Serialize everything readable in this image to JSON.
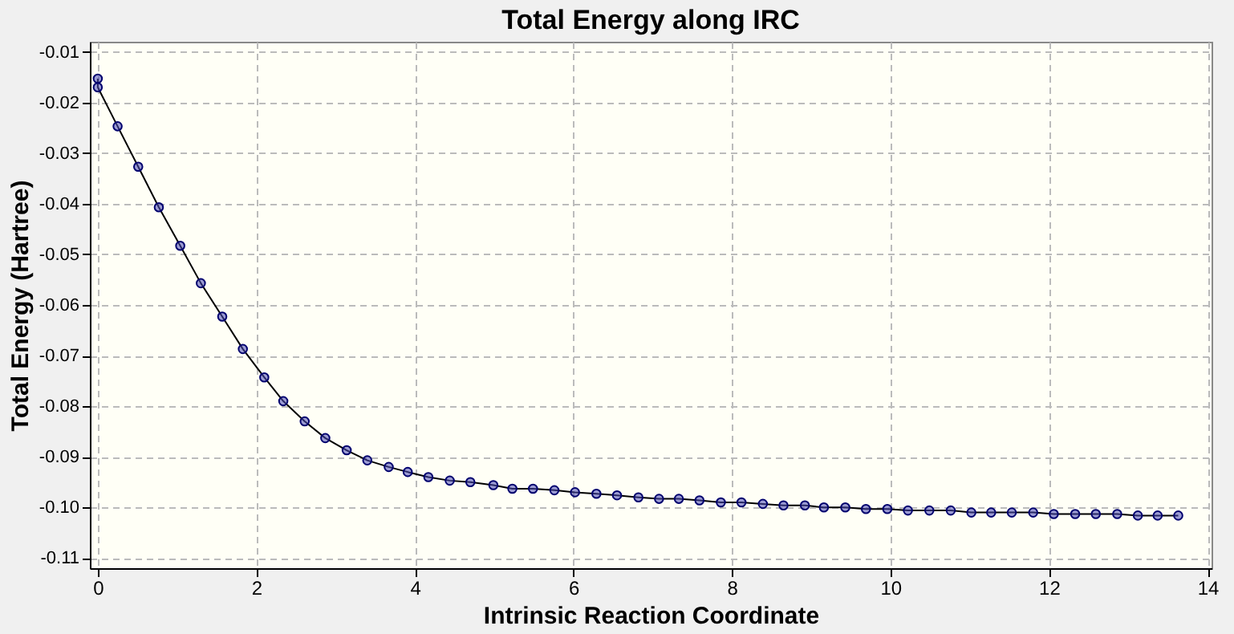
{
  "chart_data": {
    "type": "line",
    "title": "Total Energy along IRC",
    "xlabel": "Intrinsic Reaction Coordinate",
    "ylabel": "Total Energy (Hartree)",
    "xlim": [
      -0.1,
      14.05
    ],
    "ylim": [
      -0.112,
      -0.008
    ],
    "xticks": [
      0,
      2,
      4,
      6,
      8,
      10,
      12,
      14
    ],
    "yticks": [
      {
        "value": -0.01,
        "label": "-0.01"
      },
      {
        "value": -0.02,
        "label": "-0.02"
      },
      {
        "value": -0.03,
        "label": "-0.03"
      },
      {
        "value": -0.04,
        "label": "-0.04"
      },
      {
        "value": -0.05,
        "label": "-0.05"
      },
      {
        "value": -0.06,
        "label": "-0.06"
      },
      {
        "value": -0.07,
        "label": "-0.07"
      },
      {
        "value": -0.08,
        "label": "-0.08"
      },
      {
        "value": -0.09,
        "label": "-0.09"
      },
      {
        "value": -0.1,
        "label": "-0.10"
      },
      {
        "value": -0.11,
        "label": "-0.11"
      }
    ],
    "grid": true,
    "marker": "circle",
    "line_style": "solid",
    "series": [
      {
        "color": "#4a4ab8",
        "x": [
          0,
          0,
          0.25,
          0.51,
          0.77,
          1.04,
          1.3,
          1.57,
          1.83,
          2.1,
          2.34,
          2.61,
          2.87,
          3.14,
          3.4,
          3.67,
          3.91,
          4.17,
          4.44,
          4.7,
          4.99,
          5.23,
          5.49,
          5.76,
          6.02,
          6.29,
          6.55,
          6.82,
          7.08,
          7.33,
          7.59,
          7.86,
          8.12,
          8.39,
          8.65,
          8.92,
          9.16,
          9.43,
          9.69,
          9.96,
          10.22,
          10.49,
          10.76,
          11.02,
          11.27,
          11.53,
          11.8,
          12.06,
          12.33,
          12.59,
          12.86,
          13.12,
          13.37,
          13.63
        ],
        "values": [
          -0.0153,
          -0.017,
          -0.0247,
          -0.0327,
          -0.0407,
          -0.0483,
          -0.0557,
          -0.0623,
          -0.0687,
          -0.0743,
          -0.079,
          -0.083,
          -0.0863,
          -0.0887,
          -0.0907,
          -0.092,
          -0.093,
          -0.094,
          -0.0947,
          -0.095,
          -0.0956,
          -0.0963,
          -0.0963,
          -0.0966,
          -0.097,
          -0.0973,
          -0.0976,
          -0.098,
          -0.0983,
          -0.0983,
          -0.0986,
          -0.099,
          -0.099,
          -0.0993,
          -0.0996,
          -0.0996,
          -0.1,
          -0.1,
          -0.1003,
          -0.1003,
          -0.1006,
          -0.1006,
          -0.1006,
          -0.101,
          -0.101,
          -0.101,
          -0.101,
          -0.1013,
          -0.1013,
          -0.1013,
          -0.1013,
          -0.1016,
          -0.1016,
          -0.1016
        ]
      }
    ]
  }
}
